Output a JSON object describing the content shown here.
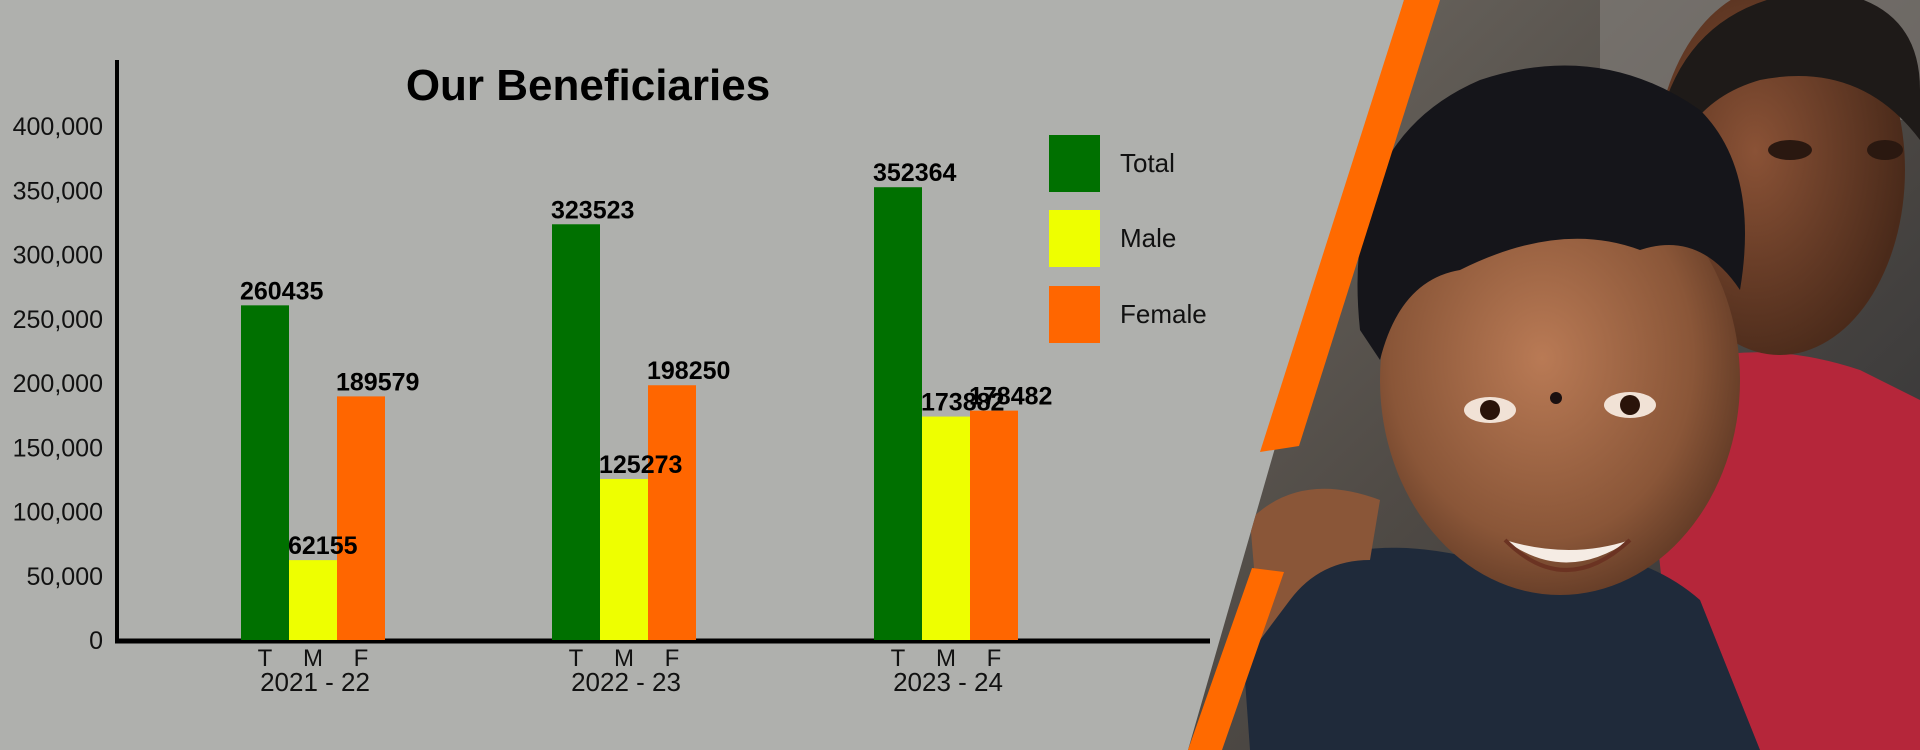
{
  "chart_data": {
    "type": "bar",
    "title": "Our Beneficiaries",
    "categories": [
      "2021 - 22",
      "2022 - 23",
      "2023 - 24"
    ],
    "sub_categories": [
      "T",
      "M",
      "F"
    ],
    "series": [
      {
        "name": "Total",
        "values": [
          260435,
          323523,
          352364
        ]
      },
      {
        "name": "Male",
        "values": [
          62155,
          125273,
          173882
        ]
      },
      {
        "name": "Female",
        "values": [
          189579,
          198250,
          178482
        ]
      }
    ],
    "y_ticks": [
      "0",
      "50,000",
      "100,000",
      "150,000",
      "200,000",
      "250,000",
      "300,000",
      "350,000",
      "400,000"
    ],
    "y_tick_values": [
      0,
      50000,
      100000,
      150000,
      200000,
      250000,
      300000,
      350000,
      400000
    ],
    "ylim": [
      0,
      400000
    ],
    "legend_position": "top-right",
    "grid": false,
    "colors": {
      "Total": "#007000",
      "Male": "#eeff00",
      "Female": "#ff6600",
      "accent_stripe": "#ff6a00"
    }
  },
  "photo": {
    "subject": "two-smiling-children-photo"
  }
}
